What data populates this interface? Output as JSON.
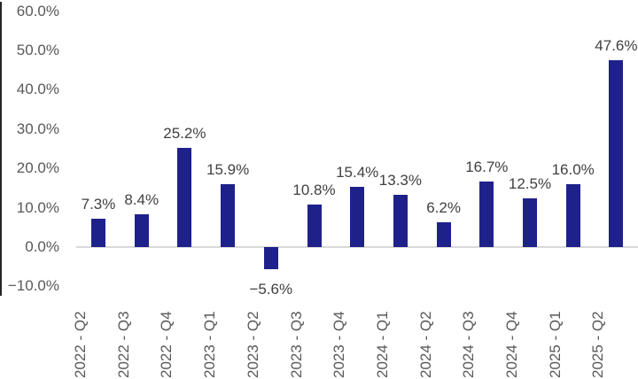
{
  "chart_data": {
    "type": "bar",
    "title": "",
    "xlabel": "",
    "ylabel": "",
    "categories": [
      "2022 - Q2",
      "2022 - Q3",
      "2022 - Q4",
      "2023 - Q1",
      "2023 - Q2",
      "2023 - Q3",
      "2023 - Q4",
      "2024 - Q1",
      "2024 - Q2",
      "2024 - Q3",
      "2024 - Q4",
      "2025 - Q1",
      "2025 - Q2"
    ],
    "values": [
      7.3,
      8.4,
      25.2,
      15.9,
      -5.6,
      10.8,
      15.4,
      13.3,
      6.2,
      16.7,
      12.5,
      16.0,
      47.6
    ],
    "value_labels": [
      "7.3%",
      "8.4%",
      "25.2%",
      "15.9%",
      "−5.6%",
      "10.8%",
      "15.4%",
      "13.3%",
      "6.2%",
      "16.7%",
      "12.5%",
      "16.0%",
      "47.6%"
    ],
    "y_ticks": [
      "60.0%",
      "50.0%",
      "40.0%",
      "30.0%",
      "20.0%",
      "10.0%",
      "0.0%",
      "−10.0%"
    ],
    "y_tick_values": [
      60,
      50,
      40,
      30,
      20,
      10,
      0,
      -10
    ],
    "ylim": [
      -10,
      60
    ],
    "legend": "none",
    "grid": "zero-baseline-only",
    "colors": {
      "bar": "#1F218B",
      "baseline": "#D9D9D9",
      "axis_line": "#262626",
      "value_label": "#404040",
      "tick_label": "#595959",
      "background": "#FFFFFF"
    }
  }
}
